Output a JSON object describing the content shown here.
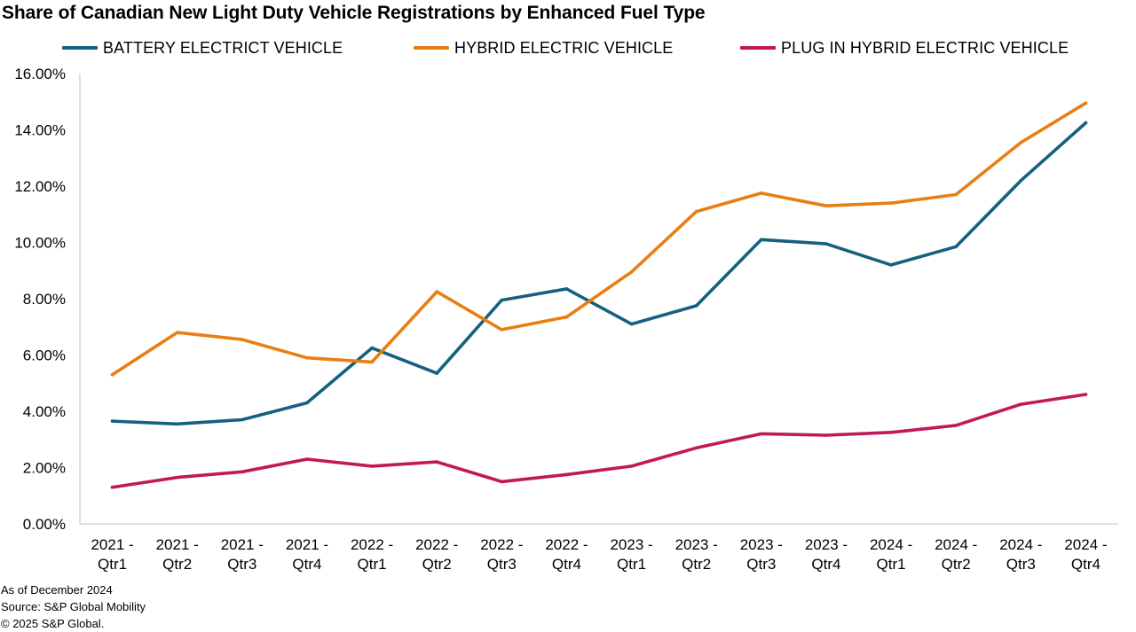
{
  "chart_data": {
    "type": "line",
    "title": "Share of Canadian New Light Duty Vehicle Registrations by Enhanced Fuel Type",
    "xlabel": "",
    "ylabel": "",
    "ylim": [
      0,
      16
    ],
    "y_ticks": [
      "0.00%",
      "2.00%",
      "4.00%",
      "6.00%",
      "8.00%",
      "10.00%",
      "12.00%",
      "14.00%",
      "16.00%"
    ],
    "categories": [
      [
        "2021 -",
        "Qtr1"
      ],
      [
        "2021 -",
        "Qtr2"
      ],
      [
        "2021 -",
        "Qtr3"
      ],
      [
        "2021 -",
        "Qtr4"
      ],
      [
        "2022 -",
        "Qtr1"
      ],
      [
        "2022 -",
        "Qtr2"
      ],
      [
        "2022 -",
        "Qtr3"
      ],
      [
        "2022 -",
        "Qtr4"
      ],
      [
        "2023 -",
        "Qtr1"
      ],
      [
        "2023 -",
        "Qtr2"
      ],
      [
        "2023 -",
        "Qtr3"
      ],
      [
        "2023 -",
        "Qtr4"
      ],
      [
        "2024 -",
        "Qtr1"
      ],
      [
        "2024 -",
        "Qtr2"
      ],
      [
        "2024 -",
        "Qtr3"
      ],
      [
        "2024 -",
        "Qtr4"
      ]
    ],
    "series": [
      {
        "name": "BATTERY ELECTRICT VEHICLE",
        "color": "#156082",
        "values": [
          3.65,
          3.55,
          3.7,
          4.3,
          6.25,
          5.35,
          7.95,
          8.35,
          7.1,
          7.75,
          10.1,
          9.95,
          9.2,
          9.85,
          12.2,
          14.25
        ]
      },
      {
        "name": "HYBRID ELECTRIC VEHICLE",
        "color": "#E97E13",
        "values": [
          5.3,
          6.8,
          6.55,
          5.9,
          5.75,
          8.25,
          6.9,
          7.35,
          8.95,
          11.1,
          11.75,
          11.3,
          11.4,
          11.7,
          13.55,
          14.95
        ]
      },
      {
        "name": "PLUG IN HYBRID ELECTRIC VEHICLE",
        "color": "#C2185B",
        "values": [
          1.3,
          1.65,
          1.85,
          2.3,
          2.05,
          2.2,
          1.5,
          1.75,
          2.05,
          2.7,
          3.2,
          3.15,
          3.25,
          3.5,
          4.25,
          4.6
        ]
      }
    ],
    "legend_position": "top"
  },
  "footer": {
    "line1": "As of December 2024",
    "line2": "Source: S&P Global Mobility",
    "line3": "© 2025 S&P Global."
  }
}
